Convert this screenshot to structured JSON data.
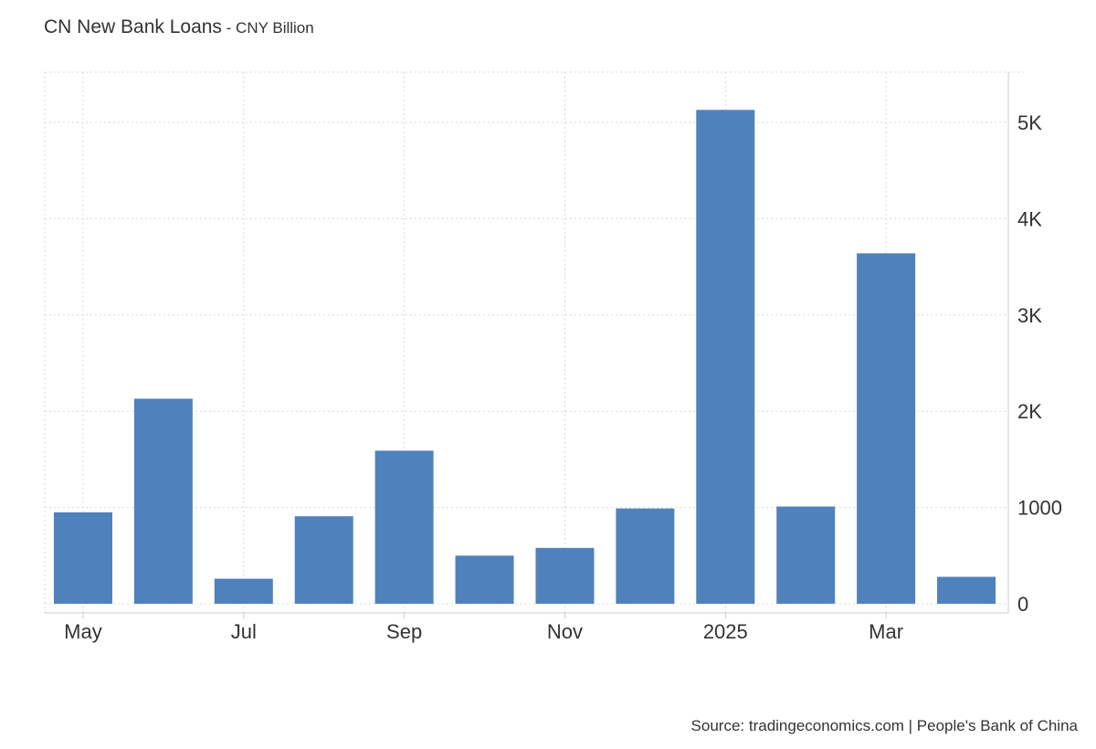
{
  "header": {
    "title": "CN New Bank Loans",
    "separator": " - ",
    "subtitle": "CNY Billion"
  },
  "footer": {
    "source": "Source: tradingeconomics.com | People's Bank of China"
  },
  "chart_data": {
    "type": "bar",
    "title": "CN New Bank Loans",
    "subtitle": "CNY Billion",
    "categories": [
      "2024-05",
      "2024-06",
      "2024-07",
      "2024-08",
      "2024-09",
      "2024-10",
      "2024-11",
      "2024-12",
      "2025-01",
      "2025-02",
      "2025-03",
      "2025-04"
    ],
    "values": [
      950,
      2130,
      260,
      909,
      1590,
      500,
      580,
      990,
      5130,
      1010,
      3640,
      280
    ],
    "x_tick_labels": [
      {
        "category": "2024-05",
        "label": "May"
      },
      {
        "category": "2024-07",
        "label": "Jul"
      },
      {
        "category": "2024-09",
        "label": "Sep"
      },
      {
        "category": "2024-11",
        "label": "Nov"
      },
      {
        "category": "2025-01",
        "label": "2025"
      },
      {
        "category": "2025-03",
        "label": "Mar"
      }
    ],
    "y_ticks": [
      0,
      1000,
      2000,
      3000,
      4000,
      5000
    ],
    "y_tick_labels": [
      "0",
      "1000",
      "2K",
      "3K",
      "4K",
      "5K"
    ],
    "ylim": [
      0,
      5500
    ],
    "y_axis_side": "right",
    "grid": true,
    "legend": false,
    "bar_color": "#4f81bd"
  }
}
